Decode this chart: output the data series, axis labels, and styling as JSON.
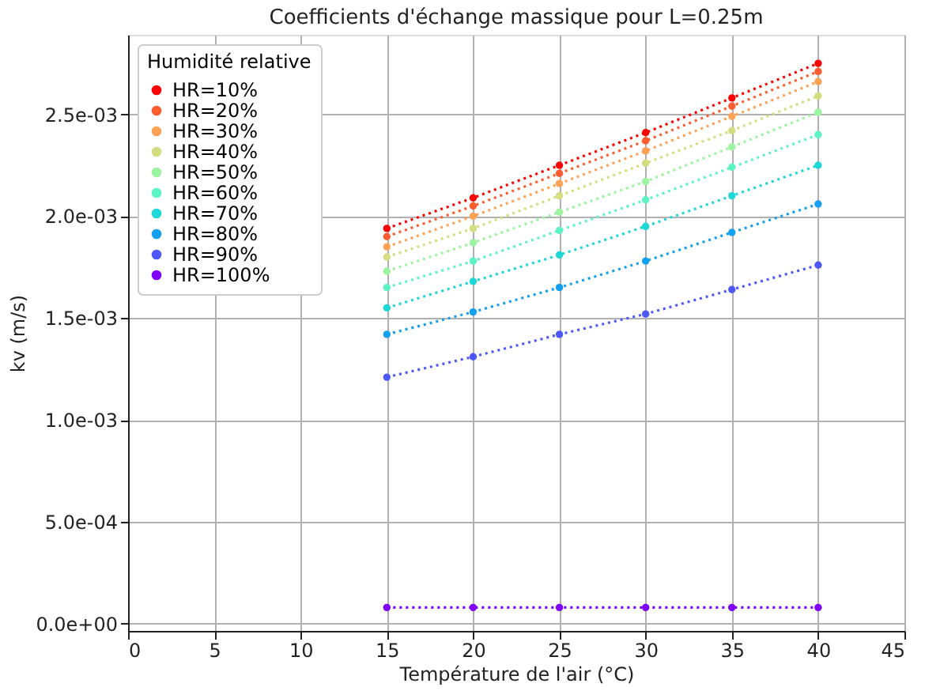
{
  "chart_data": {
    "type": "line",
    "title": "Coefficients d'échange massique pour L=0.25m",
    "xlabel": "Température de l'air (°C)",
    "ylabel": "kv (m/s)",
    "legend_title": "Humidité relative",
    "x": [
      15,
      20,
      25,
      30,
      35,
      40
    ],
    "series": [
      {
        "name": "HR=10%",
        "color": "#ff0000",
        "values": [
          0.00194,
          0.00209,
          0.00225,
          0.00241,
          0.00258,
          0.00275
        ]
      },
      {
        "name": "HR=20%",
        "color": "#ff5c30",
        "values": [
          0.0019,
          0.00205,
          0.00221,
          0.00237,
          0.00254,
          0.00271
        ]
      },
      {
        "name": "HR=30%",
        "color": "#ffa256",
        "values": [
          0.00185,
          0.002,
          0.00216,
          0.00232,
          0.00249,
          0.00266
        ]
      },
      {
        "name": "HR=40%",
        "color": "#d4dd80",
        "values": [
          0.0018,
          0.00194,
          0.0021,
          0.00226,
          0.00242,
          0.00259
        ]
      },
      {
        "name": "HR=50%",
        "color": "#9cf3a0",
        "values": [
          0.00173,
          0.00187,
          0.00202,
          0.00217,
          0.00234,
          0.00251
        ]
      },
      {
        "name": "HR=60%",
        "color": "#5cf4c2",
        "values": [
          0.00165,
          0.00178,
          0.00193,
          0.00208,
          0.00224,
          0.0024
        ]
      },
      {
        "name": "HR=70%",
        "color": "#1ed8d8",
        "values": [
          0.00155,
          0.00168,
          0.00181,
          0.00195,
          0.0021,
          0.00225
        ]
      },
      {
        "name": "HR=80%",
        "color": "#14a0f0",
        "values": [
          0.00142,
          0.00153,
          0.00165,
          0.00178,
          0.00192,
          0.00206
        ]
      },
      {
        "name": "HR=90%",
        "color": "#4d58fb",
        "values": [
          0.00121,
          0.00131,
          0.00142,
          0.00152,
          0.00164,
          0.00176
        ]
      },
      {
        "name": "HR=100%",
        "color": "#8000ff",
        "values": [
          8e-05,
          8e-05,
          8e-05,
          8e-05,
          8e-05,
          8e-05
        ]
      }
    ],
    "xlim": [
      0,
      45
    ],
    "xticks": [
      0,
      5,
      10,
      15,
      20,
      25,
      30,
      35,
      40,
      45
    ],
    "ylim": [
      -3.5e-05,
      0.00289
    ],
    "yticks": [
      {
        "value": 0,
        "label": "0.0e+00"
      },
      {
        "value": 0.0005,
        "label": "5.0e-04"
      },
      {
        "value": 0.001,
        "label": "1.0e-03"
      },
      {
        "value": 0.0015,
        "label": "1.5e-03"
      },
      {
        "value": 0.002,
        "label": "2.0e-03"
      },
      {
        "value": 0.0025,
        "label": "2.5e-03"
      }
    ],
    "grid": true,
    "legend": "top left",
    "marker": "circle",
    "line_style": "dotted"
  }
}
